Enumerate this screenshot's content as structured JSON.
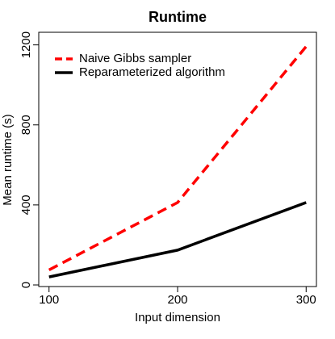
{
  "chart_data": {
    "type": "line",
    "title": "Runtime",
    "x_label": "Input dimension",
    "y_label": "Mean runtime (s)",
    "x": [
      100,
      200,
      300
    ],
    "series": [
      {
        "name": "Naive Gibbs sampler",
        "color": "#ff0000",
        "dash": true,
        "values": [
          75,
          412,
          1192
        ]
      },
      {
        "name": "Reparameterized algorithm",
        "color": "#000000",
        "dash": false,
        "values": [
          40,
          174,
          412
        ]
      }
    ],
    "xlim": [
      92,
      308
    ],
    "ylim": [
      -8,
      1263
    ],
    "xticks": [
      100,
      200,
      300
    ],
    "yticks": [
      0,
      400,
      800,
      1200
    ],
    "legend": "top-left",
    "grid": false
  }
}
